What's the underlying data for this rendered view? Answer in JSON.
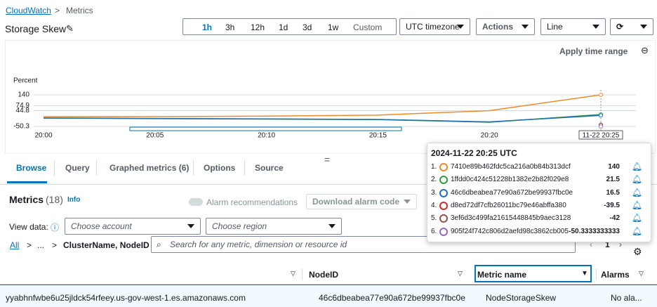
{
  "breadcrumb": [
    "CloudWatch",
    "Metrics"
  ],
  "title": "Storage Skew",
  "time_ranges": [
    "1h",
    "3h",
    "12h",
    "1d",
    "3d",
    "1w",
    "Custom"
  ],
  "timezone": "UTC timezone",
  "actions": "Actions",
  "view": "Line",
  "apply_time_range": "Apply time range",
  "chart_data": {
    "type": "line",
    "y_label": "Percent",
    "x": [
      "20:00",
      "20:05",
      "20:10",
      "20:15",
      "20:20",
      "11-22 20:25"
    ],
    "ylim": [
      -50.3,
      140
    ],
    "yticks": [
      140,
      74.9,
      44.8,
      -50.3
    ],
    "tooltip_title": "2024-11-22 20:25 UTC",
    "series": [
      {
        "rank": "1.",
        "name": "7410e89b462fdc5ca216a0b84b313dcf",
        "color": "#ee8a2a",
        "values": [
          9,
          9,
          12,
          18,
          45,
          140
        ]
      },
      {
        "rank": "2.",
        "name": "1ffdd0c424c51228b1382e2b82f029e8",
        "color": "#2e9b3e",
        "values": [
          0,
          -3,
          -6,
          -9,
          -25,
          21.5
        ]
      },
      {
        "rank": "3.",
        "name": "46c6dbeabea77e90a672be99937fbc0e",
        "color": "#1f6fb4",
        "values": [
          1,
          -2,
          -5,
          -8,
          -23,
          16.5
        ]
      },
      {
        "rank": "4.",
        "name": "d8ed72df7cfb26011bc79e46abffa380",
        "color": "#d62728",
        "values": [
          null,
          null,
          null,
          null,
          null,
          -39.5
        ]
      },
      {
        "rank": "5.",
        "name": "3ef6d3c499fa21615448845b9aec3128",
        "color": "#8c564b",
        "values": [
          null,
          null,
          null,
          null,
          null,
          -42
        ]
      },
      {
        "rank": "6.",
        "name": "905f24f742c806d2aefd98c3862cb005",
        "color": "#9467bd",
        "values": [
          null,
          null,
          null,
          null,
          null,
          -50.3333333333
        ]
      }
    ]
  },
  "tabs": [
    "Browse",
    "Query",
    "Graphed metrics (6)",
    "Options",
    "Source"
  ],
  "metrics": {
    "title": "Metrics",
    "count": "(18)",
    "info": "Info",
    "alarm_recommendations": "Alarm recommendations",
    "download": "Download alarm code",
    "view_data": "View data:",
    "account": "Choose account",
    "region": "Choose region",
    "path": [
      "All",
      "...",
      "ClusterName, NodeID"
    ],
    "search": "Search for any metric, dimension or resource id",
    "page": "1",
    "columns": [
      "NodeID",
      "Metric name",
      "Alarms"
    ],
    "rows": [
      [
        "yyabhnfwbe6u25jldck54rfeey.us-gov-west-1.es.amazonaws.com",
        "46c6dbeabea77e90a672be99937fbc0e",
        "NodeStorageSkew",
        "No ala..."
      ]
    ]
  }
}
